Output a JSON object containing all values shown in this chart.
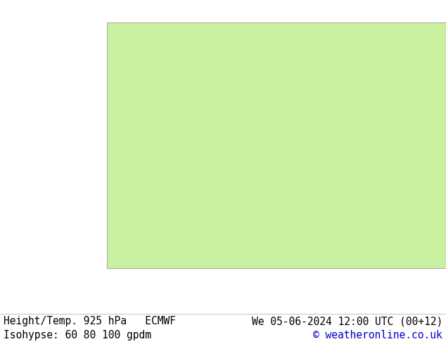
{
  "title_left_line1": "Height/Temp. 925 hPa   ECMWF",
  "title_left_line2": "Isohypse: 60 80 100 gpdm",
  "title_right_line1": "We 05-06-2024 12:00 UTC (00+12)",
  "title_right_line2": "© weatheronline.co.uk",
  "background_color": "#ffffff",
  "land_color": "#c8f0a0",
  "ocean_color": "#e8e8e8",
  "border_color": "#888888",
  "footer_text_color": "#000000",
  "footer_right_color": "#0000cc",
  "footer_fontsize": 10.5,
  "fig_width": 6.34,
  "fig_height": 4.9,
  "dpi": 100,
  "contour_colors": [
    "#ff0000",
    "#0088ff",
    "#ff00ff",
    "#00bb00",
    "#ff8800",
    "#aa00ff",
    "#00cccc",
    "#ff6699"
  ],
  "lon_min": -175,
  "lon_max": -50,
  "lat_min": 15,
  "lat_max": 80
}
